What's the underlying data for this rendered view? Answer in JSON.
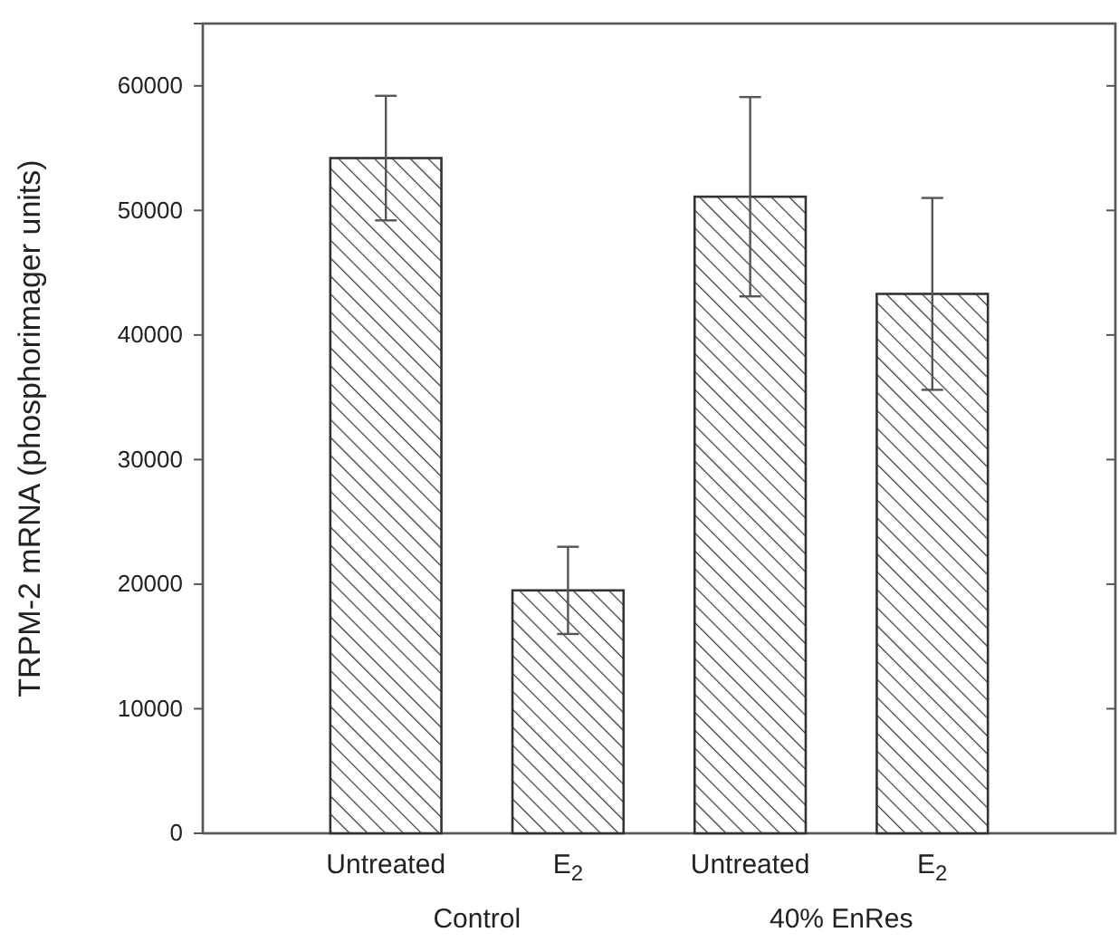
{
  "chart_data": {
    "type": "bar",
    "ylabel": "TRPM-2 mRNA (phosphorimager units)",
    "categories": [
      "Untreated",
      "E$_{2}$",
      "Untreated",
      "E$_{2}$"
    ],
    "values": [
      54200,
      19500,
      51100,
      43300
    ],
    "errors": [
      5000,
      3500,
      8000,
      7700
    ],
    "color": "#333333",
    "ylim": [
      0,
      65000
    ],
    "yticks": [
      0,
      10000,
      20000,
      30000,
      40000,
      50000,
      60000
    ],
    "grid": false,
    "annotations": [
      "Control",
      "40% EnRes"
    ]
  }
}
